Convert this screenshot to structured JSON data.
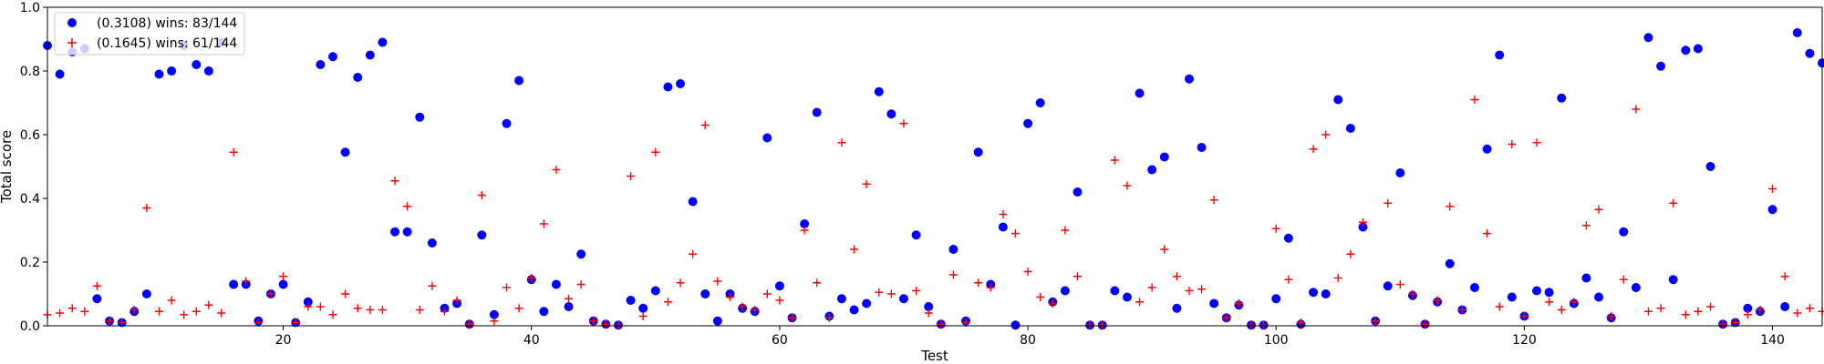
{
  "chart_data": {
    "type": "scatter",
    "xlabel": "Test",
    "ylabel": "Total score",
    "xlim": [
      1,
      144
    ],
    "ylim": [
      0,
      1.0
    ],
    "xticks": [
      20,
      40,
      60,
      80,
      100,
      120,
      140
    ],
    "xtick_labels": [
      "20",
      "40",
      "60",
      "80",
      "100",
      "120",
      "140"
    ],
    "yticks": [
      0,
      0.2,
      0.4,
      0.6,
      0.8,
      1.0
    ],
    "ytick_labels": [
      "0.0",
      "0.2",
      "0.4",
      "0.6",
      "0.8",
      "1.0"
    ],
    "grid": false,
    "legend_position": "top-left",
    "series": [
      {
        "name": "(0.3108) wins: 83/144",
        "marker": "circle",
        "color": "#0000ff",
        "x": [
          1,
          2,
          3,
          4,
          5,
          6,
          7,
          8,
          9,
          10,
          11,
          12,
          13,
          14,
          15,
          16,
          17,
          18,
          19,
          20,
          21,
          22,
          23,
          24,
          25,
          26,
          27,
          28,
          29,
          30,
          31,
          32,
          33,
          34,
          35,
          36,
          37,
          38,
          39,
          40,
          41,
          42,
          43,
          44,
          45,
          46,
          47,
          48,
          49,
          50,
          51,
          52,
          53,
          54,
          55,
          56,
          57,
          58,
          59,
          60,
          61,
          62,
          63,
          64,
          65,
          66,
          67,
          68,
          69,
          70,
          71,
          72,
          73,
          74,
          75,
          76,
          77,
          78,
          79,
          80,
          81,
          82,
          83,
          84,
          85,
          86,
          87,
          88,
          89,
          90,
          91,
          92,
          93,
          94,
          95,
          96,
          97,
          98,
          99,
          100,
          101,
          102,
          103,
          104,
          105,
          106,
          107,
          108,
          109,
          110,
          111,
          112,
          113,
          114,
          115,
          116,
          117,
          118,
          119,
          120,
          121,
          122,
          123,
          124,
          125,
          126,
          127,
          128,
          129,
          130,
          131,
          132,
          133,
          134,
          135,
          136,
          137,
          138,
          139,
          140,
          141,
          142,
          143,
          144
        ],
        "y": [
          0.88,
          0.79,
          0.86,
          0.87,
          0.085,
          0.015,
          0.01,
          0.045,
          0.1,
          0.79,
          0.8,
          0.88,
          0.82,
          0.8,
          0.89,
          0.13,
          0.13,
          0.015,
          0.1,
          0.13,
          0.01,
          0.075,
          0.82,
          0.845,
          0.545,
          0.78,
          0.85,
          0.89,
          0.295,
          0.295,
          0.655,
          0.26,
          0.055,
          0.07,
          0.005,
          0.285,
          0.035,
          0.635,
          0.77,
          0.145,
          0.045,
          0.13,
          0.06,
          0.225,
          0.015,
          0.005,
          0.002,
          0.08,
          0.055,
          0.11,
          0.75,
          0.76,
          0.39,
          0.1,
          0.015,
          0.1,
          0.055,
          0.045,
          0.59,
          0.125,
          0.025,
          0.32,
          0.67,
          0.03,
          0.085,
          0.05,
          0.07,
          0.735,
          0.665,
          0.085,
          0.285,
          0.06,
          0.005,
          0.24,
          0.015,
          0.545,
          0.13,
          0.31,
          0.002,
          0.635,
          0.7,
          0.075,
          0.11,
          0.42,
          0.002,
          0.002,
          0.11,
          0.09,
          0.73,
          0.49,
          0.53,
          0.055,
          0.775,
          0.56,
          0.07,
          0.025,
          0.065,
          0.002,
          0.002,
          0.085,
          0.275,
          0.005,
          0.105,
          0.1,
          0.71,
          0.62,
          0.31,
          0.015,
          0.125,
          0.48,
          0.095,
          0.005,
          0.075,
          0.195,
          0.05,
          0.12,
          0.555,
          0.85,
          0.09,
          0.03,
          0.11,
          0.105,
          0.715,
          0.07,
          0.15,
          0.09,
          0.025,
          0.295,
          0.12,
          0.905,
          0.815,
          0.145,
          0.865,
          0.87,
          0.5,
          0.005,
          0.01,
          0.055,
          0.045,
          0.365,
          0.06,
          0.92,
          0.855,
          0.825
        ]
      },
      {
        "name": "(0.1645) wins: 61/144",
        "marker": "plus",
        "color": "#ff0000",
        "x": [
          1,
          2,
          3,
          4,
          5,
          6,
          7,
          8,
          9,
          10,
          11,
          12,
          13,
          14,
          15,
          16,
          17,
          18,
          19,
          20,
          21,
          22,
          23,
          24,
          25,
          26,
          27,
          28,
          29,
          30,
          31,
          32,
          33,
          34,
          35,
          36,
          37,
          38,
          39,
          40,
          41,
          42,
          43,
          44,
          45,
          46,
          47,
          48,
          49,
          50,
          51,
          52,
          53,
          54,
          55,
          56,
          57,
          58,
          59,
          60,
          61,
          62,
          63,
          64,
          65,
          66,
          67,
          68,
          69,
          70,
          71,
          72,
          73,
          74,
          75,
          76,
          77,
          78,
          79,
          80,
          81,
          82,
          83,
          84,
          85,
          86,
          87,
          88,
          89,
          90,
          91,
          92,
          93,
          94,
          95,
          96,
          97,
          98,
          99,
          100,
          101,
          102,
          103,
          104,
          105,
          106,
          107,
          108,
          109,
          110,
          111,
          112,
          113,
          114,
          115,
          116,
          117,
          118,
          119,
          120,
          121,
          122,
          123,
          124,
          125,
          126,
          127,
          128,
          129,
          130,
          131,
          132,
          133,
          134,
          135,
          136,
          137,
          138,
          139,
          140,
          141,
          142,
          143,
          144
        ],
        "y": [
          0.035,
          0.04,
          0.055,
          0.045,
          0.125,
          0.015,
          0.01,
          0.05,
          0.37,
          0.045,
          0.08,
          0.035,
          0.045,
          0.065,
          0.04,
          0.545,
          0.14,
          0.01,
          0.1,
          0.155,
          0.01,
          0.06,
          0.06,
          0.035,
          0.1,
          0.055,
          0.05,
          0.05,
          0.455,
          0.375,
          0.05,
          0.125,
          0.045,
          0.08,
          0.005,
          0.41,
          0.015,
          0.12,
          0.055,
          0.15,
          0.32,
          0.49,
          0.085,
          0.13,
          0.015,
          0.005,
          0.002,
          0.47,
          0.03,
          0.545,
          0.075,
          0.135,
          0.225,
          0.63,
          0.14,
          0.09,
          0.06,
          0.05,
          0.1,
          0.08,
          0.025,
          0.3,
          0.135,
          0.025,
          0.575,
          0.24,
          0.445,
          0.105,
          0.1,
          0.635,
          0.11,
          0.04,
          0.005,
          0.16,
          0.01,
          0.135,
          0.12,
          0.35,
          0.29,
          0.17,
          0.09,
          0.07,
          0.3,
          0.155,
          0.002,
          0.002,
          0.52,
          0.44,
          0.075,
          0.12,
          0.24,
          0.155,
          0.11,
          0.115,
          0.395,
          0.025,
          0.07,
          0.002,
          0.002,
          0.305,
          0.145,
          0.01,
          0.555,
          0.6,
          0.15,
          0.225,
          0.325,
          0.015,
          0.385,
          0.13,
          0.1,
          0.005,
          0.08,
          0.375,
          0.05,
          0.71,
          0.29,
          0.06,
          0.57,
          0.03,
          0.575,
          0.075,
          0.05,
          0.075,
          0.315,
          0.365,
          0.03,
          0.145,
          0.68,
          0.045,
          0.055,
          0.385,
          0.035,
          0.045,
          0.06,
          0.005,
          0.01,
          0.035,
          0.05,
          0.43,
          0.155,
          0.04,
          0.055,
          0.045
        ]
      }
    ]
  }
}
